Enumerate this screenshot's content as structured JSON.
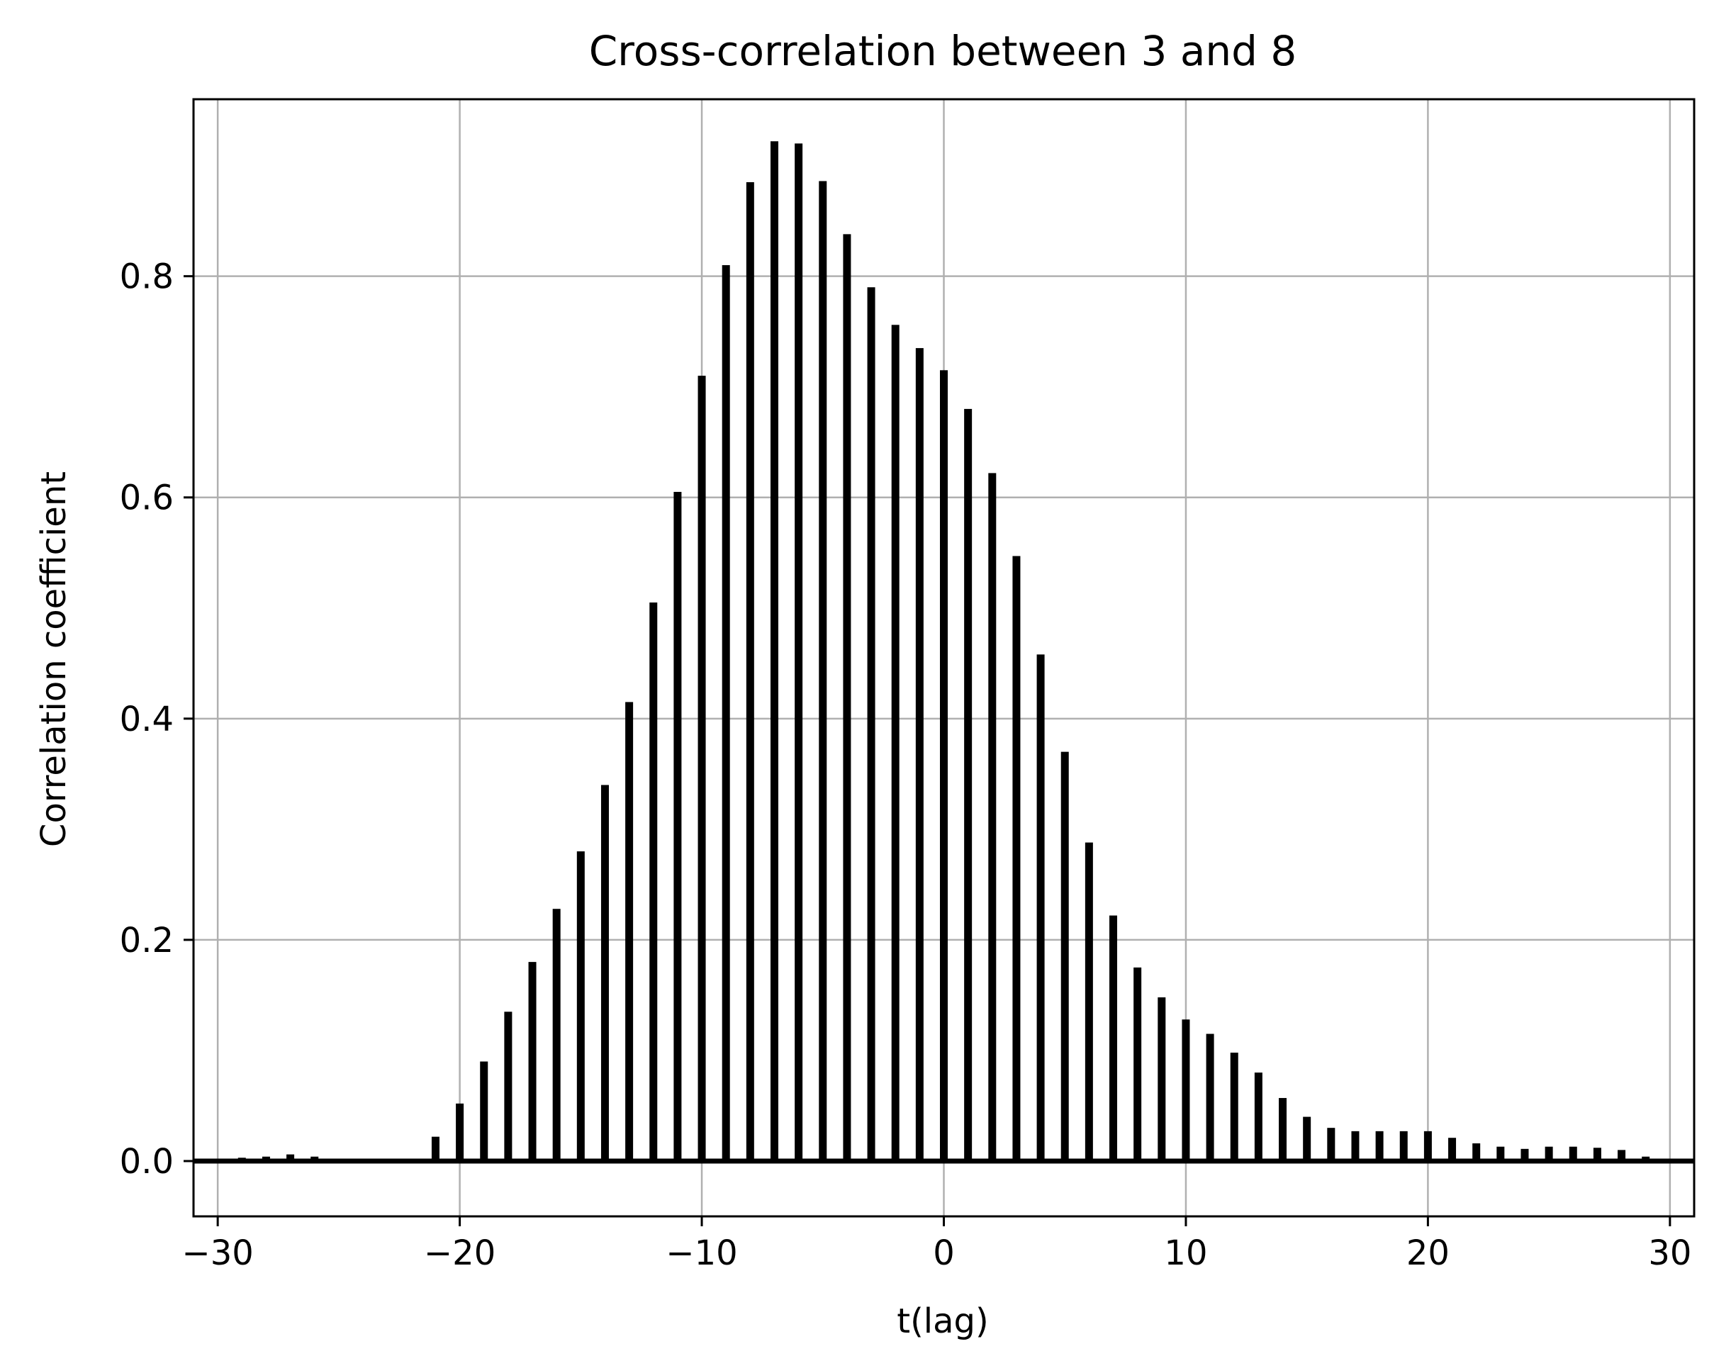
{
  "chart_data": {
    "type": "bar",
    "title": "Cross-correlation between 3 and 8",
    "xlabel": "t(lag)",
    "ylabel": "Correlation coefficient",
    "xlim": [
      -31,
      31
    ],
    "ylim": [
      -0.05,
      0.96
    ],
    "grid": true,
    "x_ticks": [
      -30,
      -20,
      -10,
      0,
      10,
      20,
      30
    ],
    "x_tick_labels": [
      "−30",
      "−20",
      "−10",
      "0",
      "10",
      "20",
      "30"
    ],
    "y_ticks": [
      0.0,
      0.2,
      0.4,
      0.6,
      0.8
    ],
    "y_tick_labels": [
      "0.0",
      "0.2",
      "0.4",
      "0.6",
      "0.8"
    ],
    "bar_color": "#000000",
    "grid_color": "#b0b0b0",
    "zero_line": true,
    "x": [
      -29,
      -28,
      -27,
      -26,
      -25,
      -24,
      -23,
      -22,
      -21,
      -20,
      -19,
      -18,
      -17,
      -16,
      -15,
      -14,
      -13,
      -12,
      -11,
      -10,
      -9,
      -8,
      -7,
      -6,
      -5,
      -4,
      -3,
      -2,
      -1,
      0,
      1,
      2,
      3,
      4,
      5,
      6,
      7,
      8,
      9,
      10,
      11,
      12,
      13,
      14,
      15,
      16,
      17,
      18,
      19,
      20,
      21,
      22,
      23,
      24,
      25,
      26,
      27,
      28,
      29
    ],
    "values": [
      0.003,
      0.004,
      0.006,
      0.004,
      0.001,
      0.001,
      0.001,
      0.002,
      0.022,
      0.052,
      0.09,
      0.135,
      0.18,
      0.228,
      0.28,
      0.34,
      0.415,
      0.505,
      0.605,
      0.71,
      0.81,
      0.885,
      0.922,
      0.92,
      0.886,
      0.838,
      0.79,
      0.756,
      0.735,
      0.715,
      0.68,
      0.622,
      0.547,
      0.458,
      0.37,
      0.288,
      0.222,
      0.175,
      0.148,
      0.128,
      0.115,
      0.098,
      0.08,
      0.057,
      0.04,
      0.03,
      0.027,
      0.027,
      0.027,
      0.027,
      0.021,
      0.016,
      0.013,
      0.011,
      0.013,
      0.013,
      0.012,
      0.01,
      0.004
    ]
  }
}
